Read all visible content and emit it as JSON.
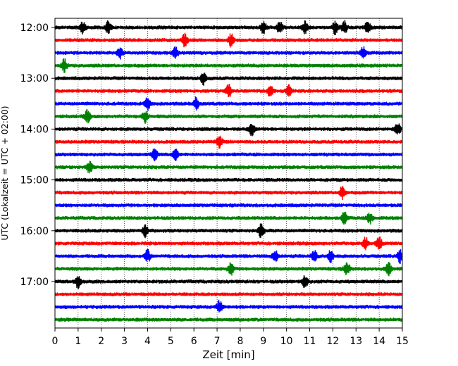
{
  "chart_data": {
    "type": "line",
    "title": "",
    "xlabel": "Zeit  [min]",
    "ylabel": "UTC (Lokalzeit = UTC + 02:00)",
    "xlim": [
      0,
      15
    ],
    "xticks": [
      "0",
      "1",
      "2",
      "3",
      "4",
      "5",
      "6",
      "7",
      "8",
      "9",
      "10",
      "11",
      "12",
      "13",
      "14",
      "15"
    ],
    "yticks": [
      "12:00",
      "13:00",
      "14:00",
      "15:00",
      "16:00",
      "17:00"
    ],
    "grid": "vertical dotted lines at each minute",
    "trace_interval_minutes": 15,
    "trace_start": "12:00",
    "trace_colors": [
      "#000000",
      "#ff0000",
      "#0000ff",
      "#008000"
    ],
    "traces": [
      {
        "start": "12:00",
        "events_min": [
          1.2,
          2.3,
          9.0,
          9.7,
          10.8,
          12.1,
          12.5,
          13.5
        ]
      },
      {
        "start": "12:15",
        "events_min": [
          5.6,
          7.6
        ]
      },
      {
        "start": "12:30",
        "events_min": [
          2.8,
          5.2,
          13.3
        ]
      },
      {
        "start": "12:45",
        "events_min": [
          0.4
        ]
      },
      {
        "start": "13:00",
        "events_min": [
          6.4
        ]
      },
      {
        "start": "13:15",
        "events_min": [
          7.5,
          9.3,
          10.1
        ]
      },
      {
        "start": "13:30",
        "events_min": [
          4.0,
          6.1
        ]
      },
      {
        "start": "13:45",
        "events_min": [
          1.4,
          3.9
        ]
      },
      {
        "start": "14:00",
        "events_min": [
          8.5,
          14.8
        ]
      },
      {
        "start": "14:15",
        "events_min": [
          7.1
        ]
      },
      {
        "start": "14:30",
        "events_min": [
          4.3,
          5.2
        ]
      },
      {
        "start": "14:45",
        "events_min": [
          1.5
        ]
      },
      {
        "start": "15:00",
        "events_min": []
      },
      {
        "start": "15:15",
        "events_min": [
          12.4
        ]
      },
      {
        "start": "15:30",
        "events_min": []
      },
      {
        "start": "15:45",
        "events_min": [
          12.5,
          13.6
        ]
      },
      {
        "start": "16:00",
        "events_min": [
          3.9,
          8.9
        ]
      },
      {
        "start": "16:15",
        "events_min": [
          13.4,
          14.0
        ]
      },
      {
        "start": "16:30",
        "events_min": [
          4.0,
          9.5,
          11.2,
          11.9,
          14.9
        ]
      },
      {
        "start": "16:45",
        "events_min": [
          7.6,
          12.6,
          14.4
        ]
      },
      {
        "start": "17:00",
        "events_min": [
          1.0,
          10.8
        ]
      },
      {
        "start": "17:15",
        "events_min": []
      },
      {
        "start": "17:30",
        "events_min": [
          7.1
        ]
      },
      {
        "start": "17:45",
        "events_min": []
      }
    ]
  }
}
